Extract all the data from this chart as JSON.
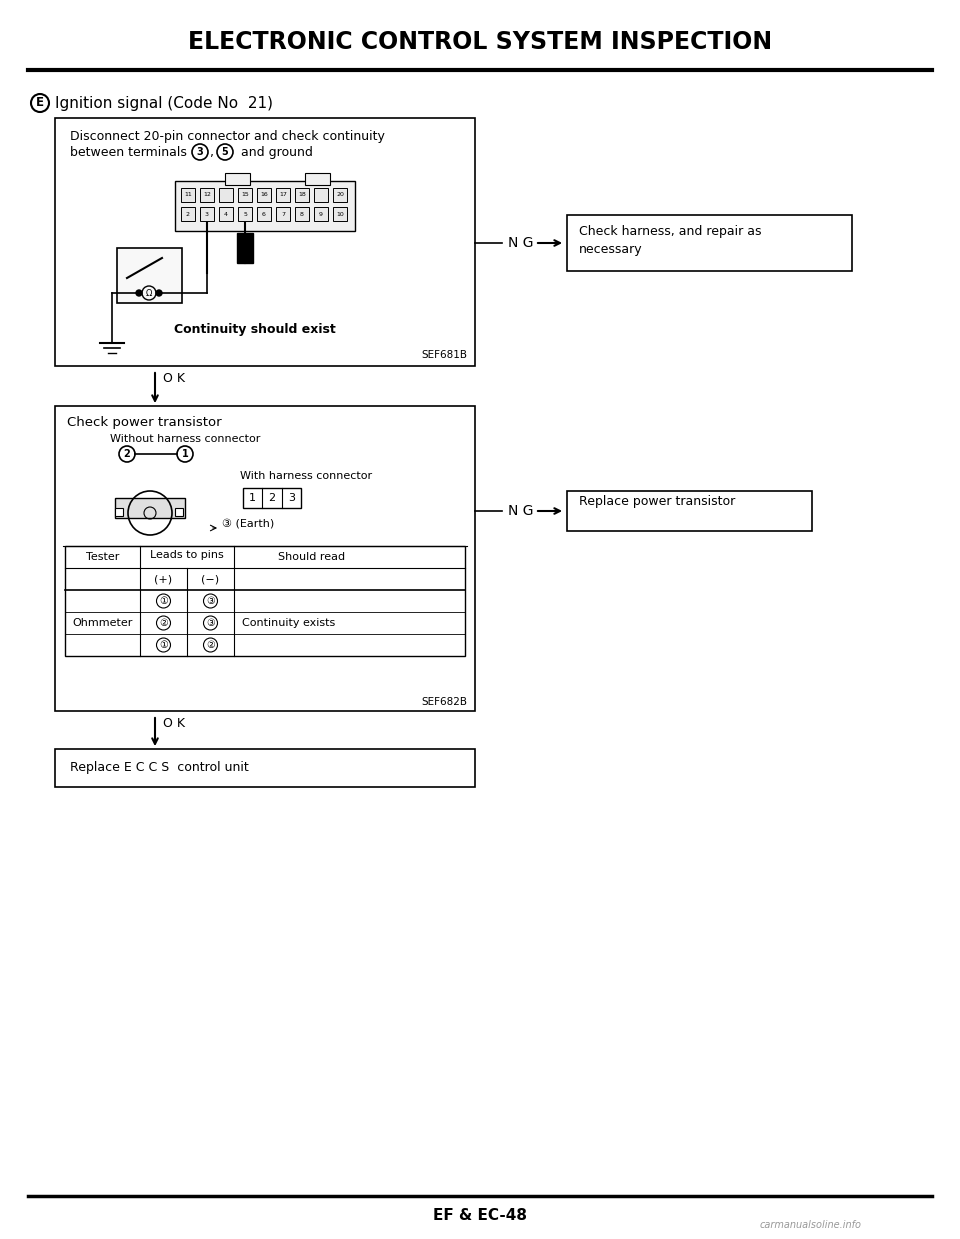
{
  "title": "ELECTRONIC CONTROL SYSTEM INSPECTION",
  "bg_color": "#ffffff",
  "text_color": "#000000",
  "section_label": "E",
  "section_title": "Ignition signal (Code No  21)",
  "box1_line1": "Disconnect 20-pin connector and check continuity",
  "box1_line2": "between terminals ③, ⑤ and ground",
  "box1_caption": "Continuity should exist",
  "box1_ref": "SEF681B",
  "ng_label": "N G",
  "ng_box1_line1": "Check harness, and repair as",
  "ng_box1_line2": "necessary",
  "ok_label": "O K",
  "box2_title": "Check power transistor",
  "box2_sub1": "Without harness connector",
  "box2_sub2": "With harness connector",
  "box2_earth": "③ (Earth)",
  "box2_ref": "SEF682B",
  "ng_box2": "Replace power transistor",
  "tbl_header1": "Tester",
  "tbl_header2": "Leads to pins",
  "tbl_header3": "Should read",
  "tbl_plus": "(+)",
  "tbl_minus": "(−)",
  "tbl_row1_p": "①",
  "tbl_row1_m": "③",
  "tbl_row2_t": "Ohmmeter",
  "tbl_row2_p": "②",
  "tbl_row2_m": "③",
  "tbl_row2_s": "Continuity exists",
  "tbl_row3_p": "①",
  "tbl_row3_m": "②",
  "box3": "Replace E C C S  control unit",
  "footer": "EF & EC-48",
  "watermark": "carmanualsoline.info",
  "top_pins": [
    "11",
    "12",
    "",
    "15",
    "16",
    "17",
    "18",
    "",
    "20"
  ],
  "bot_pins": [
    "2",
    "3",
    "4",
    "5",
    "6",
    "7",
    "8",
    "9",
    "10"
  ]
}
